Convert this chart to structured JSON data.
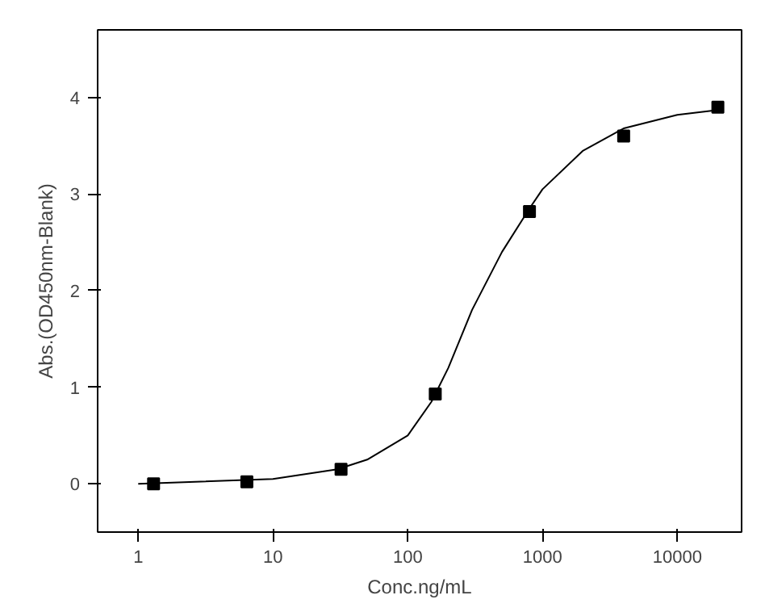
{
  "chart_data": {
    "type": "scatter",
    "xlabel": "Conc.ng/mL",
    "ylabel": "Abs.(OD450nm-Blank)",
    "log": "x",
    "xlim": [
      0.5,
      30000
    ],
    "ylim": [
      -0.5,
      4.7
    ],
    "xticks": [
      1,
      10,
      100,
      1000,
      10000
    ],
    "yticks": [
      0,
      1,
      2,
      3,
      4
    ],
    "grid": false,
    "series": [
      {
        "marker": "square",
        "color": "#000000",
        "x": [
          1.3,
          6.4,
          32,
          160,
          800,
          4000,
          20000
        ],
        "values": [
          0.0,
          0.02,
          0.15,
          0.93,
          2.82,
          3.6,
          3.9
        ]
      },
      {
        "type": "line",
        "marker": "none",
        "line_style": "solid",
        "color": "#000000",
        "x": [
          1,
          10,
          30,
          50,
          100,
          150,
          200,
          300,
          500,
          800,
          1000,
          2000,
          4000,
          10000,
          20000
        ],
        "values": [
          0.0,
          0.05,
          0.15,
          0.25,
          0.5,
          0.85,
          1.2,
          1.8,
          2.4,
          2.85,
          3.05,
          3.45,
          3.68,
          3.82,
          3.87
        ]
      }
    ]
  }
}
